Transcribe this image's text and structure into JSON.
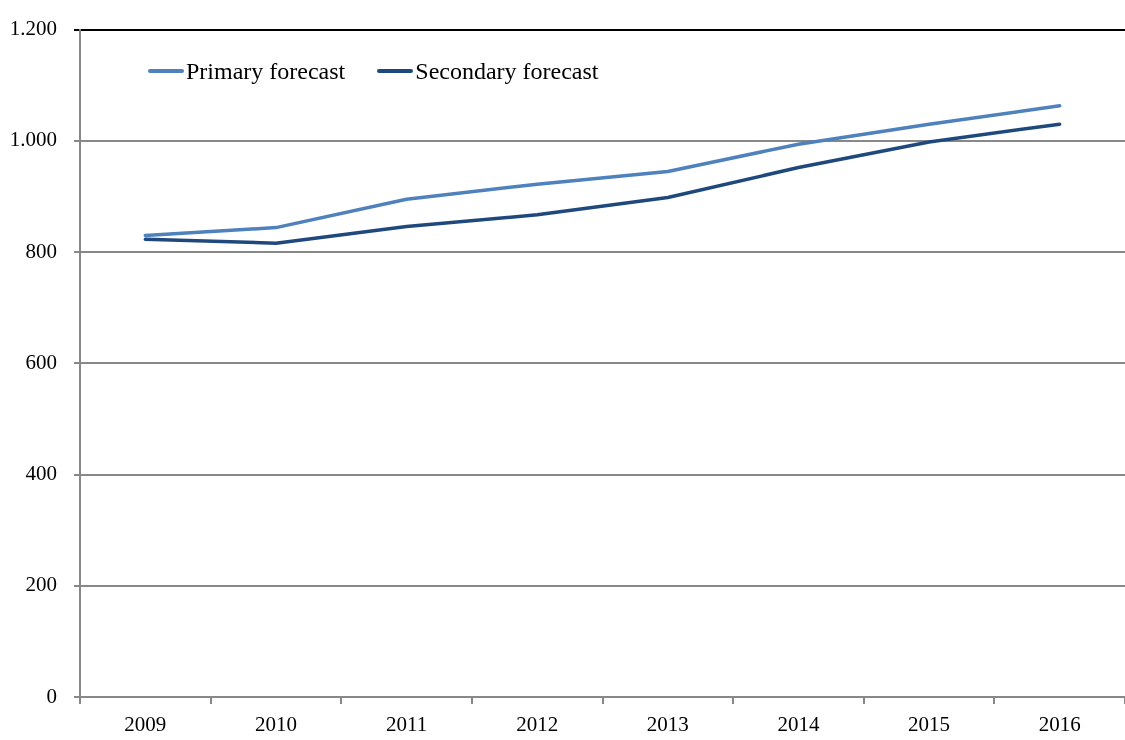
{
  "chart_data": {
    "type": "line",
    "categories": [
      "2009",
      "2010",
      "2011",
      "2012",
      "2013",
      "2014",
      "2015",
      "2016"
    ],
    "series": [
      {
        "name": "Primary forecast",
        "color": "#4f81bd",
        "values": [
          830,
          844,
          895,
          922,
          945,
          994,
          1030,
          1063
        ]
      },
      {
        "name": "Secondary forecast",
        "color": "#1f497d",
        "values": [
          823,
          816,
          846,
          867,
          898,
          952,
          998,
          1030
        ]
      }
    ],
    "ylim": [
      0,
      1200
    ],
    "yticks": [
      0,
      200,
      400,
      600,
      800,
      {
        "value": 1000,
        "label": "1.000"
      },
      {
        "value": 1200,
        "label": "1.200"
      }
    ],
    "grid": "y",
    "legend": "top left"
  }
}
